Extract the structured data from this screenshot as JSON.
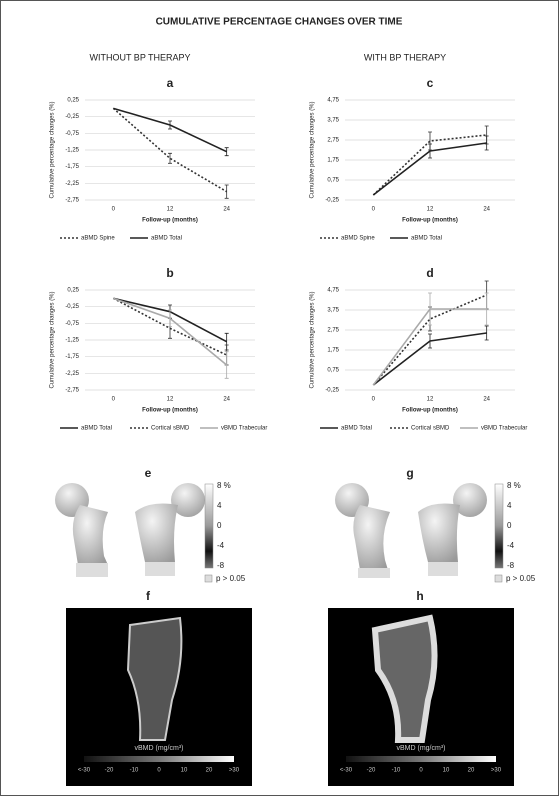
{
  "figure": {
    "title": "CUMULATIVE PERCENTAGE CHANGES OVER TIME",
    "left_heading": "WITHOUT BP THERAPY",
    "right_heading": "WITH BP THERAPY",
    "panel_e": "e",
    "panel_f": "f",
    "panel_g": "g",
    "panel_h": "h",
    "colorbar_ticks": [
      "8 %",
      "4",
      "0",
      "-4",
      "-8"
    ],
    "colorbar_note": "p > 0.05",
    "vbmd_label": "vBMD (mg/cm³)",
    "vbmd_ticks": [
      "<-30",
      "-20",
      "-10",
      "0",
      "10",
      "20",
      ">30"
    ]
  },
  "chart_data": [
    {
      "type": "line",
      "title": "a",
      "y_label": "Cumulative percentage changes (%)",
      "x_label": "Follow-up (months)",
      "categories": [
        "0",
        "12",
        "24"
      ],
      "ylim": [
        -2.75,
        0.25
      ],
      "yticks": [
        {
          "value": 0.25,
          "label": "0,25"
        },
        {
          "value": -0.25,
          "label": "-0,25"
        },
        {
          "value": -0.75,
          "label": "-0,75"
        },
        {
          "value": -1.25,
          "label": "-1,25"
        },
        {
          "value": -1.75,
          "label": "-1,75"
        },
        {
          "value": -2.25,
          "label": "-2,25"
        },
        {
          "value": -2.75,
          "label": "-2,75"
        }
      ],
      "grid": true,
      "series": [
        {
          "name": "aBMD Spine",
          "color": "#333333",
          "dash": true,
          "values": [
            0,
            -1.5,
            -2.5
          ],
          "errors": [
            null,
            0.15,
            0.2
          ]
        },
        {
          "name": "aBMD Total",
          "color": "#222222",
          "dash": false,
          "values": [
            0,
            -0.5,
            -1.3
          ],
          "errors": [
            null,
            0.12,
            0.12
          ]
        }
      ]
    },
    {
      "type": "line",
      "title": "b",
      "y_label": "Cumulative percentage changes (%)",
      "x_label": "Follow-up (months)",
      "categories": [
        "0",
        "12",
        "24"
      ],
      "ylim": [
        -2.75,
        0.25
      ],
      "yticks": [
        {
          "value": 0.25,
          "label": "0,25"
        },
        {
          "value": -0.25,
          "label": "-0,25"
        },
        {
          "value": -0.75,
          "label": "-0,75"
        },
        {
          "value": -1.25,
          "label": "-1,25"
        },
        {
          "value": -1.75,
          "label": "-1,75"
        },
        {
          "value": -2.25,
          "label": "-2,25"
        },
        {
          "value": -2.75,
          "label": "-2,75"
        }
      ],
      "grid": true,
      "series": [
        {
          "name": "aBMD Total",
          "color": "#222222",
          "dash": false,
          "values": [
            0,
            -0.4,
            -1.3
          ],
          "errors": [
            null,
            0.2,
            0.25
          ]
        },
        {
          "name": "Cortical sBMD",
          "color": "#333333",
          "dash": true,
          "values": [
            0,
            -0.9,
            -1.7
          ],
          "errors": [
            null,
            0.3,
            0.3
          ]
        },
        {
          "name": "vBMD Trabecular",
          "color": "#aaaaaa",
          "dash": false,
          "values": [
            0,
            -0.6,
            -2.0
          ],
          "errors": [
            null,
            0.25,
            0.4
          ]
        }
      ]
    },
    {
      "type": "line",
      "title": "c",
      "y_label": "Cumulative percentage changes (%)",
      "x_label": "Follow-up (months)",
      "categories": [
        "0",
        "12",
        "24"
      ],
      "ylim": [
        -0.25,
        4.75
      ],
      "yticks": [
        {
          "value": 4.75,
          "label": "4,75"
        },
        {
          "value": 3.75,
          "label": "3,75"
        },
        {
          "value": 2.75,
          "label": "2,75"
        },
        {
          "value": 1.75,
          "label": "1,75"
        },
        {
          "value": 0.75,
          "label": "0,75"
        },
        {
          "value": -0.25,
          "label": "-0,25"
        }
      ],
      "grid": true,
      "series": [
        {
          "name": "aBMD Spine",
          "color": "#333333",
          "dash": true,
          "values": [
            0,
            2.7,
            3.0
          ],
          "errors": [
            null,
            0.45,
            0.45
          ]
        },
        {
          "name": "aBMD Total",
          "color": "#222222",
          "dash": false,
          "values": [
            0,
            2.2,
            2.6
          ],
          "errors": [
            null,
            0.35,
            0.35
          ]
        }
      ]
    },
    {
      "type": "line",
      "title": "d",
      "y_label": "Cumulative percentage changes (%)",
      "x_label": "Follow-up (months)",
      "categories": [
        "0",
        "12",
        "24"
      ],
      "ylim": [
        -0.25,
        4.75
      ],
      "yticks": [
        {
          "value": 4.75,
          "label": "4,75"
        },
        {
          "value": 3.75,
          "label": "3,75"
        },
        {
          "value": 2.75,
          "label": "2,75"
        },
        {
          "value": 1.75,
          "label": "1,75"
        },
        {
          "value": 0.75,
          "label": "0,75"
        },
        {
          "value": -0.25,
          "label": "-0,25"
        }
      ],
      "grid": true,
      "series": [
        {
          "name": "aBMD Total",
          "color": "#222222",
          "dash": false,
          "values": [
            0,
            2.2,
            2.6
          ],
          "errors": [
            null,
            0.35,
            0.35
          ]
        },
        {
          "name": "Cortical sBMD",
          "color": "#333333",
          "dash": true,
          "values": [
            0,
            3.3,
            4.5
          ],
          "errors": [
            null,
            0.6,
            0.7
          ]
        },
        {
          "name": "vBMD Trabecular",
          "color": "#aaaaaa",
          "dash": false,
          "values": [
            0,
            3.8,
            3.8
          ],
          "errors": [
            null,
            0.8,
            0.8
          ]
        }
      ]
    }
  ]
}
